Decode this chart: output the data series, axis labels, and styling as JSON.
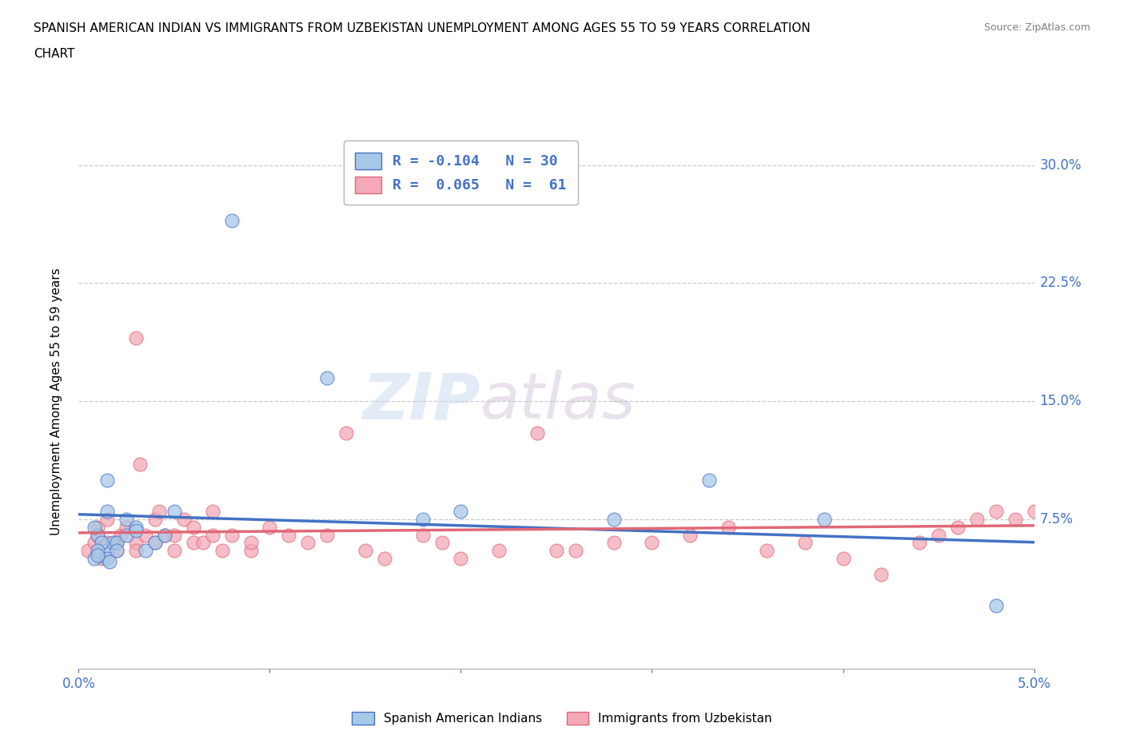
{
  "title_line1": "SPANISH AMERICAN INDIAN VS IMMIGRANTS FROM UZBEKISTAN UNEMPLOYMENT AMONG AGES 55 TO 59 YEARS CORRELATION",
  "title_line2": "CHART",
  "source": "Source: ZipAtlas.com",
  "ylabel": "Unemployment Among Ages 55 to 59 years",
  "xlim": [
    0.0,
    0.05
  ],
  "ylim": [
    -0.02,
    0.32
  ],
  "xticks": [
    0.0,
    0.01,
    0.02,
    0.03,
    0.04,
    0.05
  ],
  "xticklabels_outer": [
    "0.0%",
    "",
    "",
    "",
    "",
    "5.0%"
  ],
  "yticks": [
    0.0,
    0.075,
    0.15,
    0.225,
    0.3
  ],
  "yticklabels_right": [
    "",
    "7.5%",
    "15.0%",
    "22.5%",
    "30.0%"
  ],
  "blue_R": -0.104,
  "blue_N": 30,
  "pink_R": 0.065,
  "pink_N": 61,
  "blue_color": "#a8c8e8",
  "pink_color": "#f4a8b8",
  "blue_line_color": "#4472c4",
  "pink_line_color": "#e06878",
  "legend1_label": "Spanish American Indians",
  "legend2_label": "Immigrants from Uzbekistan",
  "watermark_zip": "ZIP",
  "watermark_atlas": "atlas",
  "blue_scatter_x": [
    0.0015,
    0.0018,
    0.001,
    0.0008,
    0.0012,
    0.0008,
    0.001,
    0.0015,
    0.0016,
    0.001,
    0.002,
    0.0015,
    0.0015,
    0.002,
    0.0025,
    0.0025,
    0.003,
    0.003,
    0.0035,
    0.004,
    0.0045,
    0.005,
    0.008,
    0.013,
    0.018,
    0.02,
    0.028,
    0.033,
    0.039,
    0.048
  ],
  "blue_scatter_y": [
    0.055,
    0.06,
    0.065,
    0.05,
    0.06,
    0.07,
    0.055,
    0.05,
    0.048,
    0.052,
    0.06,
    0.1,
    0.08,
    0.055,
    0.065,
    0.075,
    0.07,
    0.068,
    0.055,
    0.06,
    0.065,
    0.08,
    0.265,
    0.165,
    0.075,
    0.08,
    0.075,
    0.1,
    0.075,
    0.02
  ],
  "pink_scatter_x": [
    0.0005,
    0.0008,
    0.001,
    0.001,
    0.0012,
    0.0015,
    0.0015,
    0.002,
    0.002,
    0.0022,
    0.0025,
    0.003,
    0.003,
    0.003,
    0.0032,
    0.0035,
    0.004,
    0.004,
    0.0042,
    0.0045,
    0.005,
    0.005,
    0.0055,
    0.006,
    0.006,
    0.0065,
    0.007,
    0.007,
    0.0075,
    0.008,
    0.009,
    0.009,
    0.01,
    0.011,
    0.012,
    0.013,
    0.014,
    0.015,
    0.016,
    0.018,
    0.019,
    0.02,
    0.022,
    0.024,
    0.025,
    0.026,
    0.028,
    0.03,
    0.032,
    0.034,
    0.036,
    0.038,
    0.04,
    0.042,
    0.044,
    0.045,
    0.046,
    0.047,
    0.048,
    0.049,
    0.05
  ],
  "pink_scatter_y": [
    0.055,
    0.06,
    0.065,
    0.07,
    0.05,
    0.06,
    0.075,
    0.055,
    0.06,
    0.065,
    0.07,
    0.06,
    0.19,
    0.055,
    0.11,
    0.065,
    0.075,
    0.06,
    0.08,
    0.065,
    0.055,
    0.065,
    0.075,
    0.06,
    0.07,
    0.06,
    0.065,
    0.08,
    0.055,
    0.065,
    0.055,
    0.06,
    0.07,
    0.065,
    0.06,
    0.065,
    0.13,
    0.055,
    0.05,
    0.065,
    0.06,
    0.05,
    0.055,
    0.13,
    0.055,
    0.055,
    0.06,
    0.06,
    0.065,
    0.07,
    0.055,
    0.06,
    0.05,
    0.04,
    0.06,
    0.065,
    0.07,
    0.075,
    0.08,
    0.075,
    0.08
  ]
}
